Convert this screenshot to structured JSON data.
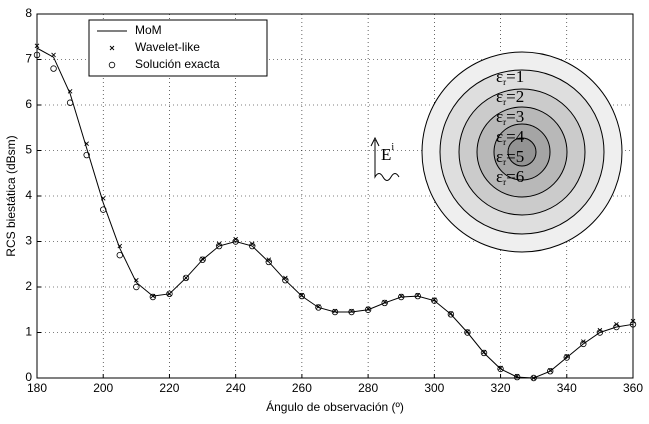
{
  "chart_data": {
    "type": "line",
    "xlabel": "Ángulo de observación (º)",
    "ylabel": "RCS biestática (dBsm)",
    "x": [
      180,
      185,
      190,
      195,
      200,
      205,
      210,
      215,
      220,
      225,
      230,
      235,
      240,
      245,
      250,
      255,
      260,
      265,
      270,
      275,
      280,
      285,
      290,
      295,
      300,
      305,
      310,
      315,
      320,
      325,
      330,
      335,
      340,
      345,
      350,
      355,
      360
    ],
    "series": [
      {
        "name": "MoM",
        "color": "#000000",
        "style": "line",
        "values": [
          7.25,
          7.05,
          6.25,
          5.05,
          3.85,
          2.85,
          2.1,
          1.8,
          1.85,
          2.2,
          2.6,
          2.9,
          3.0,
          2.9,
          2.55,
          2.15,
          1.8,
          1.55,
          1.45,
          1.45,
          1.5,
          1.65,
          1.78,
          1.8,
          1.7,
          1.4,
          1.0,
          0.55,
          0.2,
          0.02,
          0.0,
          0.15,
          0.45,
          0.75,
          1.0,
          1.12,
          1.18
        ]
      },
      {
        "name": "Wavelet-like",
        "color": "#000000",
        "style": "x",
        "values": [
          7.3,
          7.1,
          6.3,
          5.15,
          3.95,
          2.9,
          2.15,
          1.8,
          1.85,
          2.2,
          2.62,
          2.95,
          3.05,
          2.95,
          2.6,
          2.2,
          1.82,
          1.57,
          1.47,
          1.47,
          1.52,
          1.67,
          1.8,
          1.82,
          1.72,
          1.42,
          1.02,
          0.57,
          0.22,
          0.04,
          0.0,
          0.17,
          0.48,
          0.8,
          1.05,
          1.18,
          1.25
        ]
      },
      {
        "name": "Solución exacta",
        "color": "#000000",
        "style": "o",
        "values": [
          7.1,
          6.8,
          6.05,
          4.9,
          3.7,
          2.7,
          2.0,
          1.78,
          1.85,
          2.2,
          2.6,
          2.9,
          3.0,
          2.9,
          2.55,
          2.15,
          1.8,
          1.55,
          1.45,
          1.45,
          1.5,
          1.65,
          1.78,
          1.8,
          1.7,
          1.4,
          1.0,
          0.55,
          0.2,
          0.02,
          0.0,
          0.15,
          0.45,
          0.75,
          1.0,
          1.12,
          1.18
        ]
      }
    ],
    "xlim": [
      180,
      360
    ],
    "xticks": [
      180,
      200,
      220,
      240,
      260,
      280,
      300,
      320,
      340,
      360
    ],
    "ylim": [
      0,
      8
    ],
    "yticks": [
      0,
      1,
      2,
      3,
      4,
      5,
      6,
      7,
      8
    ],
    "grid": true,
    "legend": "upper left"
  },
  "inset": {
    "field": {
      "base": "E",
      "sup": "i"
    },
    "labels": [
      {
        "base": "ε",
        "sub": "r",
        "text": "=1"
      },
      {
        "base": "ε",
        "sub": "r",
        "text": "=2"
      },
      {
        "base": "ε",
        "sub": "r",
        "text": "=3"
      },
      {
        "base": "ε",
        "sub": "r",
        "text": "=4"
      },
      {
        "base": "ε",
        "sub": "r",
        "text": "=5"
      },
      {
        "base": "ε",
        "sub": "r",
        "text": "=6"
      }
    ]
  }
}
